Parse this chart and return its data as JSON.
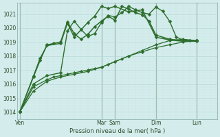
{
  "background_color": "#d4ecec",
  "grid_color_major": "#b8d8d8",
  "grid_color_minor": "#c8e4e4",
  "line_color": "#2d6e2d",
  "title": "Pression niveau de la mer( hPa )",
  "ylim": [
    1013.5,
    1021.8
  ],
  "yticks": [
    1014,
    1015,
    1016,
    1017,
    1018,
    1019,
    1020,
    1021
  ],
  "day_labels": [
    "Ven",
    "Mar",
    "Sam",
    "Dim",
    "Lun"
  ],
  "day_positions": [
    0,
    6,
    7,
    10,
    13
  ],
  "xlim": [
    -0.2,
    14.5
  ],
  "series": [
    {
      "x": [
        0,
        1,
        2,
        2.5,
        3,
        3.5,
        4,
        4.5,
        5,
        5.5,
        6,
        6.5,
        7,
        7.5,
        8,
        9,
        10,
        11,
        12,
        13
      ],
      "y": [
        1014.0,
        1015.8,
        1016.3,
        1016.5,
        1016.6,
        1016.7,
        1016.8,
        1016.9,
        1017.0,
        1017.1,
        1017.2,
        1017.4,
        1017.6,
        1017.8,
        1018.0,
        1018.3,
        1018.6,
        1018.8,
        1019.0,
        1019.1
      ],
      "lw": 0.9,
      "ms": 2.2
    },
    {
      "x": [
        0,
        1,
        2,
        3,
        4,
        5,
        6,
        7,
        8,
        9,
        10,
        11,
        12,
        13
      ],
      "y": [
        1014.0,
        1015.5,
        1016.2,
        1016.5,
        1016.7,
        1016.9,
        1017.2,
        1017.6,
        1018.0,
        1018.4,
        1018.8,
        1019.1,
        1019.2,
        1019.1
      ],
      "lw": 0.9,
      "ms": 2.2
    },
    {
      "x": [
        0,
        1,
        2,
        3,
        3.5,
        4,
        4.5,
        5,
        5.5,
        6,
        6.5,
        7,
        7.5,
        8,
        8.5,
        9,
        9.5,
        10,
        10.5,
        11,
        11.5,
        12,
        12.5,
        13
      ],
      "y": [
        1014.0,
        1016.0,
        1016.6,
        1016.8,
        1019.8,
        1020.5,
        1019.9,
        1019.4,
        1019.6,
        1020.4,
        1020.9,
        1020.8,
        1021.1,
        1021.55,
        1021.3,
        1021.1,
        1021.0,
        1021.5,
        1021.2,
        1020.5,
        1019.35,
        1019.15,
        1019.1,
        1019.1
      ],
      "lw": 1.0,
      "ms": 2.5
    },
    {
      "x": [
        0,
        1,
        1.5,
        2,
        2.5,
        3,
        3.5,
        4,
        4.5,
        5,
        5.5,
        6,
        6.5,
        7,
        7.5,
        8,
        8.5,
        9,
        9.5,
        10,
        11,
        12,
        13
      ],
      "y": [
        1014.0,
        1016.5,
        1017.7,
        1018.8,
        1018.9,
        1019.0,
        1020.45,
        1019.6,
        1019.2,
        1019.55,
        1020.1,
        1020.5,
        1020.85,
        1020.55,
        1021.55,
        1021.35,
        1021.1,
        1020.95,
        1020.5,
        1019.5,
        1019.2,
        1019.1,
        1019.05
      ],
      "lw": 1.1,
      "ms": 2.5
    },
    {
      "x": [
        0,
        1,
        1.5,
        2,
        3,
        3.5,
        4,
        5,
        5.5,
        6,
        6.5,
        7,
        8,
        9,
        10,
        11,
        12,
        13
      ],
      "y": [
        1014.0,
        1016.55,
        1017.85,
        1018.75,
        1018.9,
        1020.35,
        1019.35,
        1020.4,
        1020.85,
        1021.55,
        1021.4,
        1021.55,
        1021.15,
        1021.3,
        1019.35,
        1019.15,
        1019.05,
        1019.1
      ],
      "lw": 1.1,
      "ms": 2.5
    }
  ]
}
